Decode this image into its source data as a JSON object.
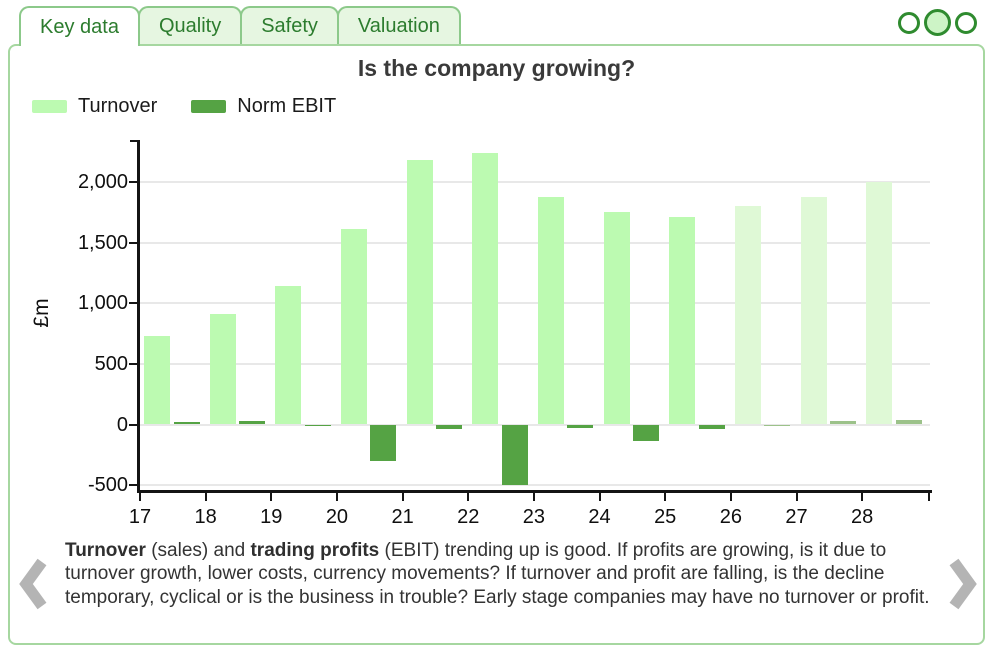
{
  "tabs": [
    {
      "id": "key-data",
      "label": "Key data",
      "active": true
    },
    {
      "id": "quality",
      "label": "Quality",
      "active": false
    },
    {
      "id": "safety",
      "label": "Safety",
      "active": false
    },
    {
      "id": "valuation",
      "label": "Valuation",
      "active": false
    }
  ],
  "pager_dots": {
    "count": 3,
    "active_index": 1
  },
  "chart_data": {
    "type": "bar",
    "title": "Is the company growing?",
    "ylabel": "£m",
    "categories": [
      "17",
      "18",
      "19",
      "20",
      "21",
      "22",
      "23",
      "24",
      "25",
      "26",
      "27",
      "28"
    ],
    "series": [
      {
        "name": "Turnover",
        "values": [
          730,
          910,
          1140,
          1610,
          2180,
          2240,
          1880,
          1750,
          1710,
          1800,
          1880,
          2000
        ]
      },
      {
        "name": "Norm EBIT",
        "values": [
          20,
          25,
          -5,
          -300,
          -40,
          -500,
          -30,
          -140,
          -35,
          -5,
          25,
          40
        ]
      }
    ],
    "forecast_start_index": 9,
    "yticks": [
      2000,
      1500,
      1000,
      500,
      0,
      -500
    ],
    "ytick_labels": [
      "2,000",
      "1,500",
      "1,000",
      "500",
      "0",
      "-500"
    ],
    "ylim": [
      -560,
      2330
    ],
    "grid": "horizontal",
    "legend_position": "top-left",
    "colors": {
      "historical": [
        "#bcfab1",
        "#55a344"
      ],
      "forecast": [
        "#dff9d6",
        "#9cc28a"
      ]
    }
  },
  "footer": {
    "segments": [
      {
        "text": "Turnover",
        "bold": true
      },
      {
        "text": " (sales) and ",
        "bold": false
      },
      {
        "text": "trading profits",
        "bold": true
      },
      {
        "text": " (EBIT) trending up is good. If profits are growing, is it due to turnover growth, lower costs, currency movements? If turnover and profit are falling, is the decline temporary, cyclical or is the business in trouble? Early stage companies may have no turnover or profit.",
        "bold": false
      }
    ]
  },
  "theme": {
    "tab_text": "#2c7c2e",
    "tab_border": "#8cc98a",
    "tab_bg": "#e6f6e1",
    "panel_border": "#a6d7a0",
    "dot_border": "#2f8b2f",
    "dot_active": "#cdf4c6",
    "arrow": "#b4b4b4"
  }
}
